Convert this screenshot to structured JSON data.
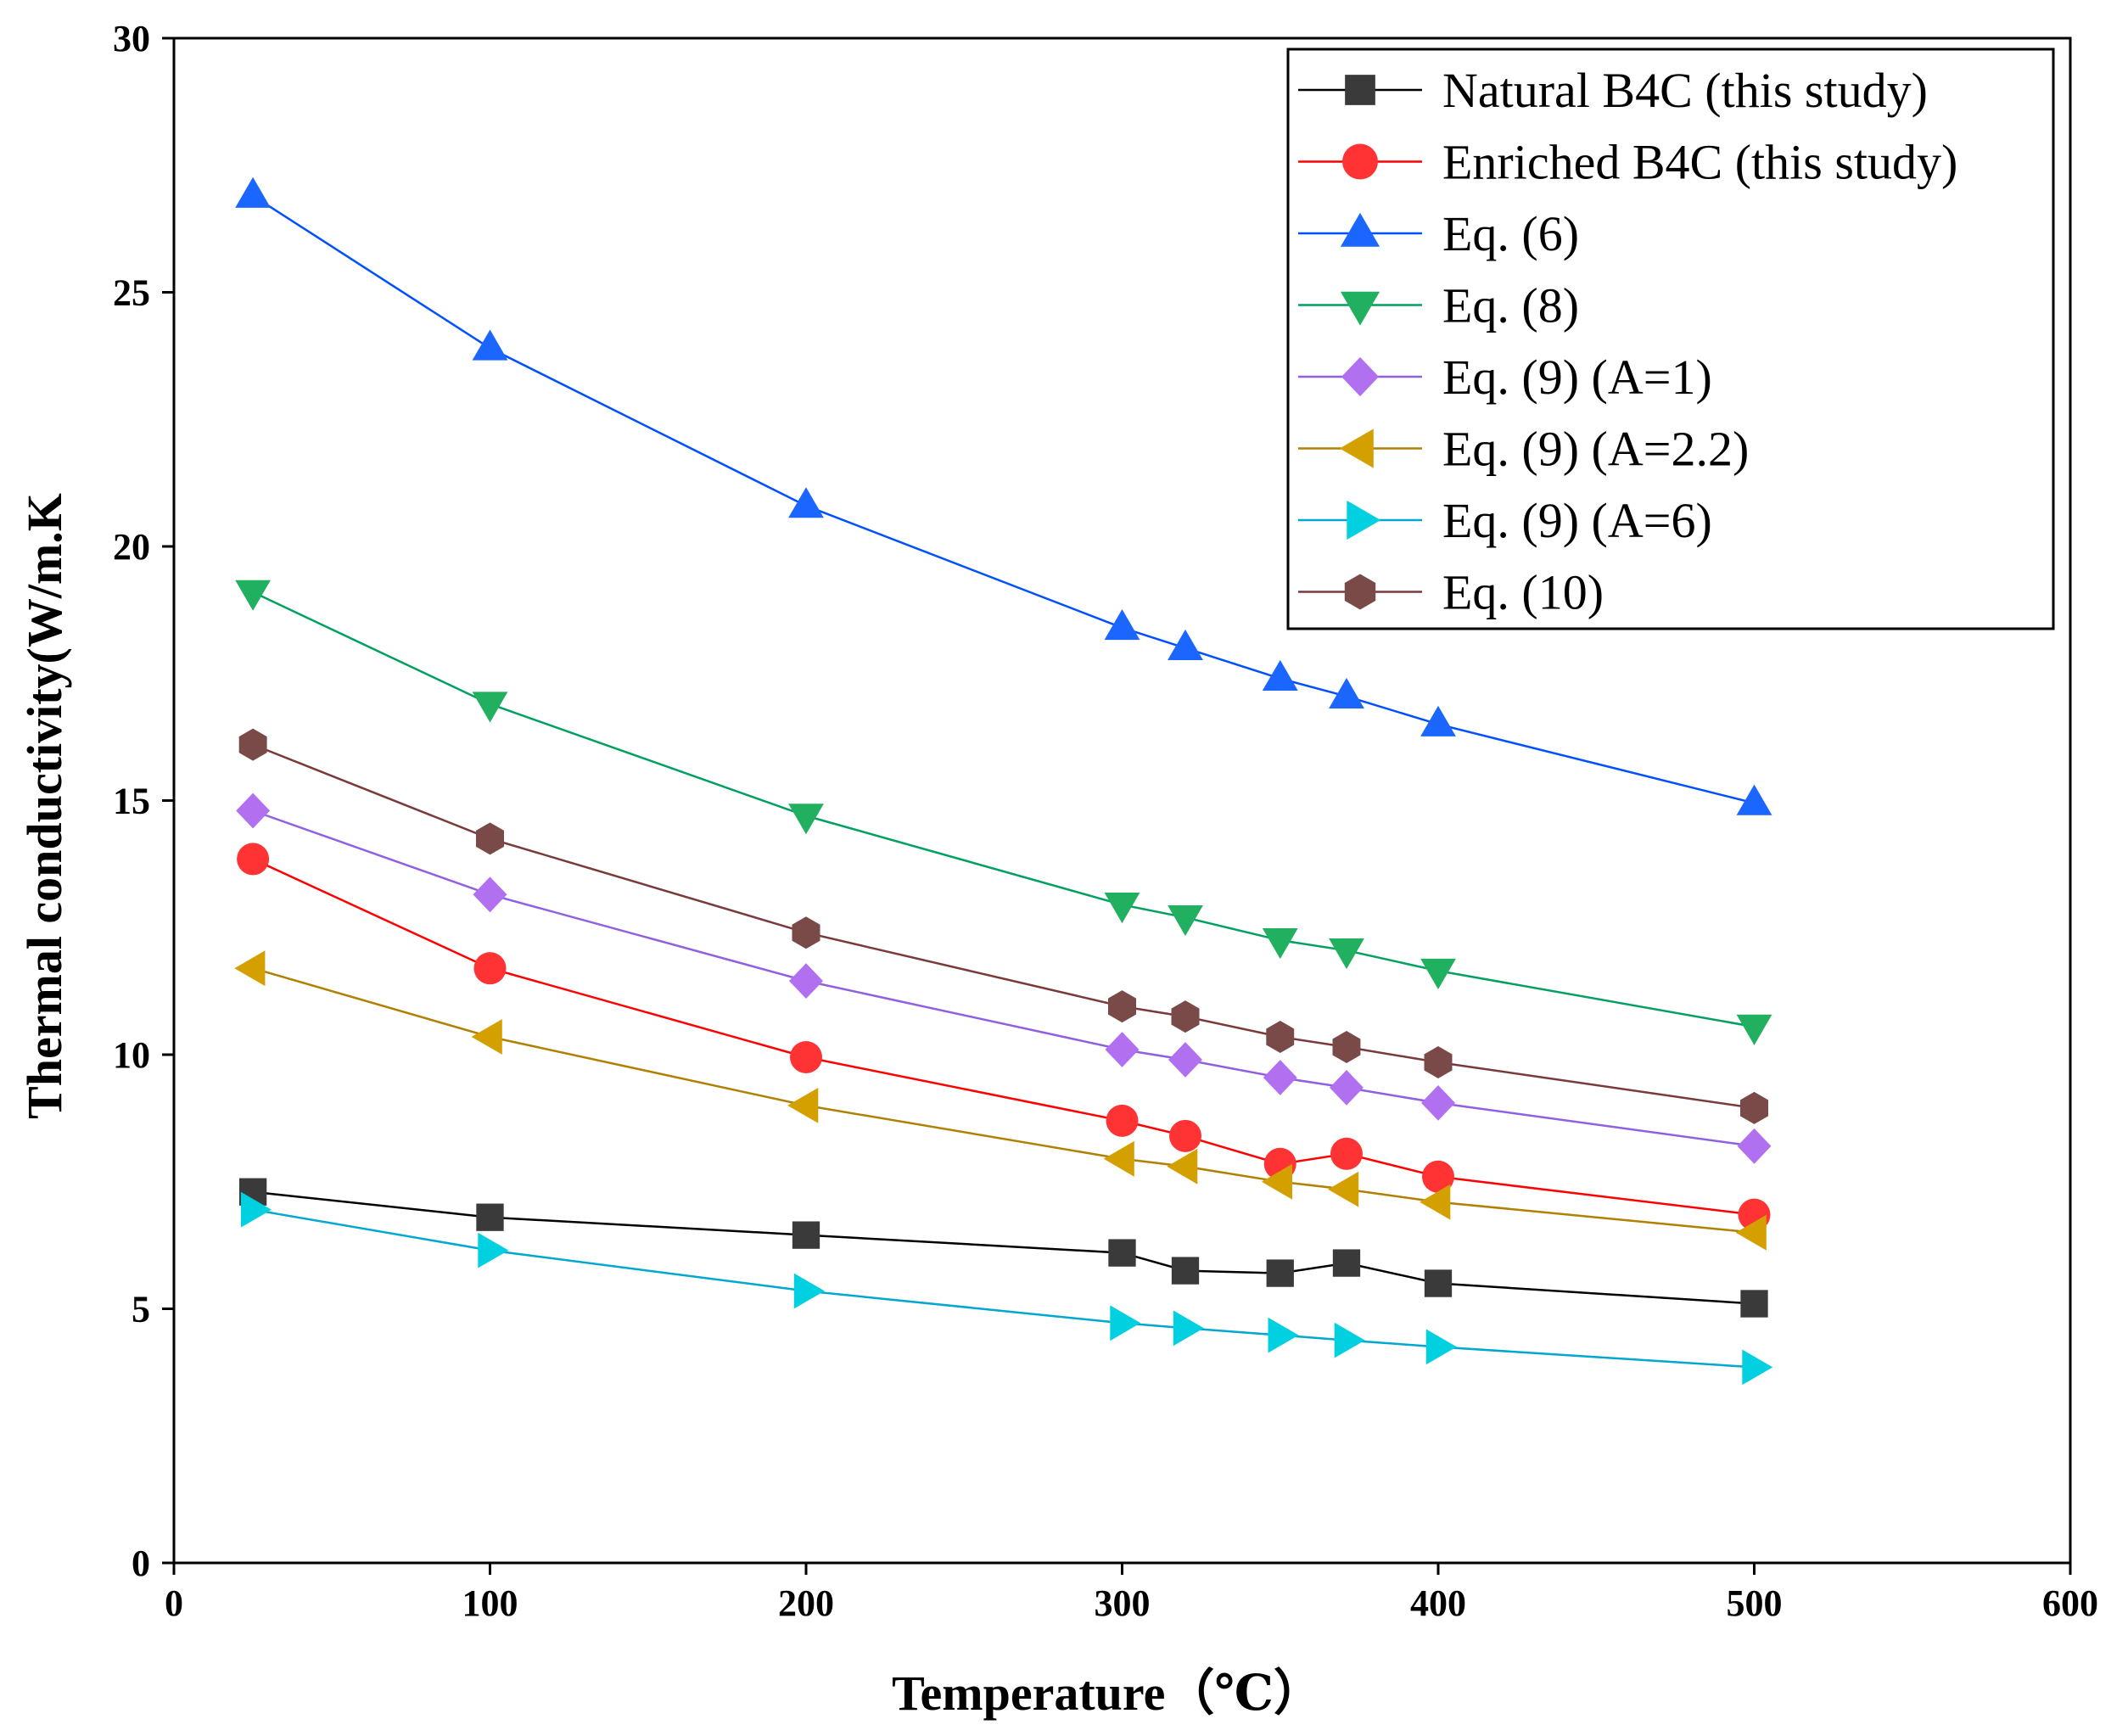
{
  "chart_data": {
    "type": "line",
    "title": "",
    "xlabel": "Temperature（℃）",
    "ylabel": "Thermal conductivity(W/m.K",
    "xlim": [
      0,
      600
    ],
    "ylim": [
      0,
      30
    ],
    "xticks": [
      0,
      100,
      200,
      300,
      400,
      500,
      600
    ],
    "yticks": [
      0,
      5,
      10,
      15,
      20,
      25,
      30
    ],
    "grid": false,
    "legend_position": "top-right",
    "x": [
      25,
      100,
      200,
      300,
      320,
      350,
      371,
      400,
      500
    ],
    "series": [
      {
        "name": "Natural B4C (this study)",
        "marker": "square",
        "color": "#000000",
        "fill": "#3a3a3a",
        "values": [
          7.3,
          6.8,
          6.45,
          6.1,
          5.75,
          5.7,
          5.9,
          5.5,
          5.1
        ]
      },
      {
        "name": "Enriched B4C (this study)",
        "marker": "circle",
        "color": "#ff0000",
        "fill": "#ff3333",
        "values": [
          13.85,
          11.7,
          9.95,
          8.7,
          8.4,
          7.85,
          8.05,
          7.6,
          6.85
        ]
      },
      {
        "name": "Eq. (6)",
        "marker": "triangle-up",
        "color": "#0050ff",
        "fill": "#1a66ff",
        "values": [
          26.9,
          23.9,
          20.8,
          18.4,
          18.0,
          17.4,
          17.05,
          16.5,
          14.95
        ]
      },
      {
        "name": "Eq. (8)",
        "marker": "triangle-down",
        "color": "#00a060",
        "fill": "#20b060",
        "values": [
          19.1,
          16.9,
          14.7,
          12.95,
          12.7,
          12.25,
          12.05,
          11.65,
          10.55
        ]
      },
      {
        "name": "Eq. (9) (A=1)",
        "marker": "diamond",
        "color": "#9060e0",
        "fill": "#b070f0",
        "values": [
          14.8,
          13.15,
          11.45,
          10.1,
          9.9,
          9.55,
          9.35,
          9.05,
          8.2
        ]
      },
      {
        "name": "Eq. (9) (A=2.2)",
        "marker": "triangle-left",
        "color": "#b08000",
        "fill": "#d4a000",
        "values": [
          11.7,
          10.35,
          9.0,
          7.95,
          7.8,
          7.5,
          7.35,
          7.1,
          6.5
        ]
      },
      {
        "name": "Eq. (9) (A=6)",
        "marker": "triangle-right",
        "color": "#00a8d0",
        "fill": "#00d0e0",
        "values": [
          6.95,
          6.15,
          5.35,
          4.72,
          4.62,
          4.48,
          4.38,
          4.25,
          3.85
        ]
      },
      {
        "name": "Eq. (10)",
        "marker": "hexagon",
        "color": "#7a3a3a",
        "fill": "#7a4a48",
        "values": [
          16.1,
          14.25,
          12.4,
          10.95,
          10.75,
          10.35,
          10.15,
          9.85,
          8.95
        ]
      }
    ]
  }
}
